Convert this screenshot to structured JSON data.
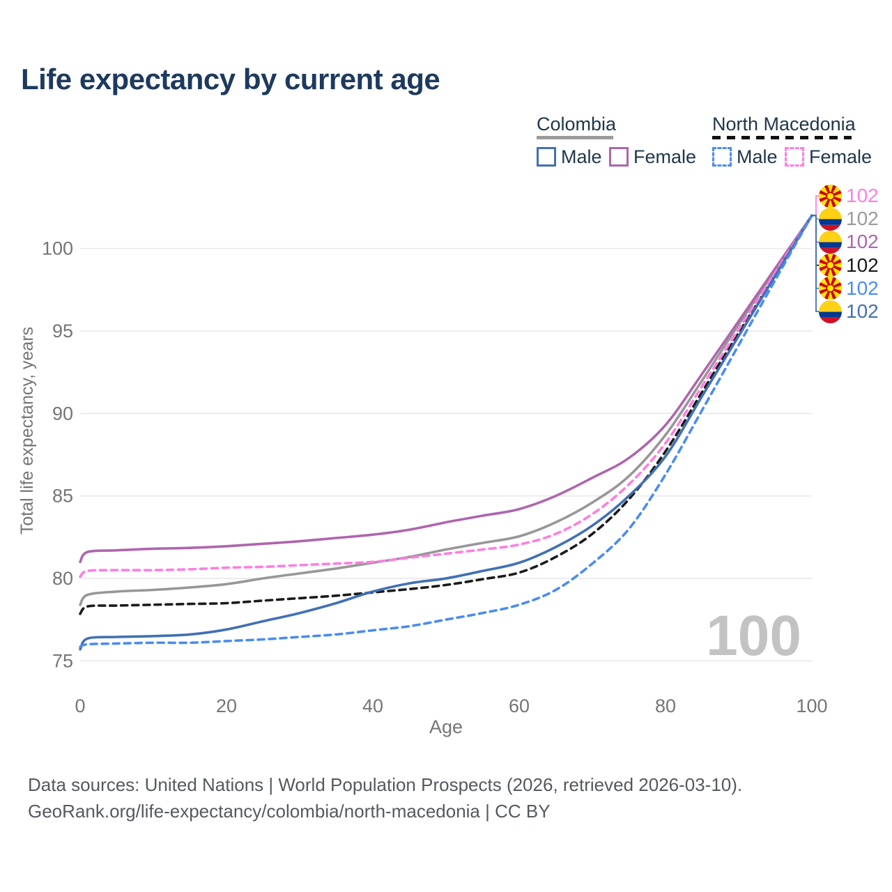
{
  "title": "Life expectancy by current age",
  "legend": {
    "groups": [
      {
        "name": "Colombia",
        "line_style": "solid",
        "underline_color": "#9b9b9b",
        "items": [
          {
            "label": "Male",
            "color": "#4170b4",
            "dashed": false
          },
          {
            "label": "Female",
            "color": "#af65ad",
            "dashed": false
          }
        ]
      },
      {
        "name": "North Macedonia",
        "line_style": "dashed",
        "underline_color": "#111111",
        "items": [
          {
            "label": "Male",
            "color": "#4a8cf0",
            "dashed": true
          },
          {
            "label": "Female",
            "color": "#ff7de1",
            "dashed": true
          }
        ]
      }
    ]
  },
  "watermark": "100",
  "chart_data": {
    "type": "line",
    "title": "Life expectancy by current age",
    "xlabel": "Age",
    "ylabel": "Total life expectancy, years",
    "x_ticks": [
      0,
      20,
      40,
      60,
      80,
      100
    ],
    "y_ticks": [
      75,
      80,
      85,
      90,
      95,
      100
    ],
    "xlim": [
      0,
      100
    ],
    "ylim": [
      75,
      102
    ],
    "grid": "horizontal-only",
    "legend_position": "top-right",
    "x": [
      0,
      1,
      5,
      10,
      15,
      20,
      25,
      30,
      35,
      40,
      45,
      50,
      55,
      60,
      65,
      70,
      75,
      80,
      85,
      90,
      95,
      100
    ],
    "series": [
      {
        "name": "Colombia",
        "country": "Colombia",
        "sex": "both",
        "color": "#979797",
        "dash": "solid",
        "end_label": "102",
        "values": [
          78.4,
          79.0,
          79.2,
          79.3,
          79.45,
          79.65,
          80.0,
          80.3,
          80.6,
          80.95,
          81.3,
          81.75,
          82.15,
          82.55,
          83.4,
          84.6,
          86.2,
          88.7,
          92.0,
          95.4,
          98.7,
          102
        ]
      },
      {
        "name": "Colombia Female",
        "country": "Colombia",
        "sex": "female",
        "color": "#af65ad",
        "dash": "solid",
        "end_label": "102",
        "values": [
          81.0,
          81.6,
          81.7,
          81.8,
          81.85,
          81.95,
          82.1,
          82.25,
          82.45,
          82.65,
          82.95,
          83.4,
          83.8,
          84.2,
          85.0,
          86.1,
          87.3,
          89.3,
          92.4,
          95.6,
          98.8,
          102
        ]
      },
      {
        "name": "North Macedonia",
        "country": "North Macedonia",
        "sex": "both",
        "color": "#1a1a1a",
        "dash": "dashed",
        "end_label": "102",
        "values": [
          77.85,
          78.3,
          78.35,
          78.4,
          78.45,
          78.5,
          78.65,
          78.8,
          78.95,
          79.15,
          79.35,
          79.6,
          79.95,
          80.35,
          81.3,
          82.7,
          84.8,
          87.7,
          91.3,
          94.9,
          98.4,
          102
        ]
      },
      {
        "name": "North Macedonia Female",
        "country": "North Macedonia",
        "sex": "female",
        "color": "#ff7de1",
        "dash": "dashed",
        "end_label": "102",
        "values": [
          80.1,
          80.45,
          80.5,
          80.5,
          80.55,
          80.65,
          80.7,
          80.8,
          80.9,
          81.0,
          81.25,
          81.5,
          81.75,
          82.05,
          82.7,
          83.9,
          85.7,
          88.2,
          91.65,
          95.1,
          98.55,
          102
        ]
      },
      {
        "name": "Colombia Male",
        "country": "Colombia",
        "sex": "male",
        "color": "#4170b4",
        "dash": "solid",
        "end_label": "102",
        "values": [
          75.7,
          76.35,
          76.45,
          76.5,
          76.6,
          76.9,
          77.4,
          77.9,
          78.5,
          79.2,
          79.7,
          80.0,
          80.45,
          80.95,
          81.9,
          83.2,
          85.0,
          87.4,
          91.05,
          94.7,
          98.35,
          102
        ]
      },
      {
        "name": "North Macedonia Male",
        "country": "North Macedonia",
        "sex": "male",
        "color": "#4a8cf0",
        "dash": "dashed",
        "end_label": "102",
        "values": [
          75.85,
          76.0,
          76.05,
          76.1,
          76.1,
          76.2,
          76.3,
          76.45,
          76.6,
          76.85,
          77.1,
          77.5,
          77.9,
          78.4,
          79.3,
          80.9,
          83.0,
          86.3,
          90.2,
          94.15,
          98.1,
          102
        ]
      }
    ],
    "end_labels": [
      {
        "flag": "north-macedonia",
        "value": "102",
        "color": "#ff7de1",
        "series": "North Macedonia Female"
      },
      {
        "flag": "colombia",
        "value": "102",
        "color": "#9b9b9b",
        "series": "Colombia"
      },
      {
        "flag": "colombia",
        "value": "102",
        "color": "#af65ad",
        "series": "Colombia Female"
      },
      {
        "flag": "north-macedonia",
        "value": "102",
        "color": "#1a1a1a",
        "series": "North Macedonia"
      },
      {
        "flag": "north-macedonia",
        "value": "102",
        "color": "#4a8cf0",
        "series": "North Macedonia Male"
      },
      {
        "flag": "colombia",
        "value": "102",
        "color": "#4170b4",
        "series": "Colombia Male"
      }
    ]
  },
  "colors": {
    "title": "#1d3a5e",
    "axis_text": "#757575",
    "gridline": "#e8e8e8",
    "watermark": "#c3c3c3",
    "footer_text": "#55595e",
    "legend_text": "#21364b"
  },
  "footer": {
    "line1": "Data sources: United Nations | World Population Prospects (2026, retrieved 2026-03-10).",
    "line2": "GeoRank.org/life-expectancy/colombia/north-macedonia | CC BY"
  }
}
